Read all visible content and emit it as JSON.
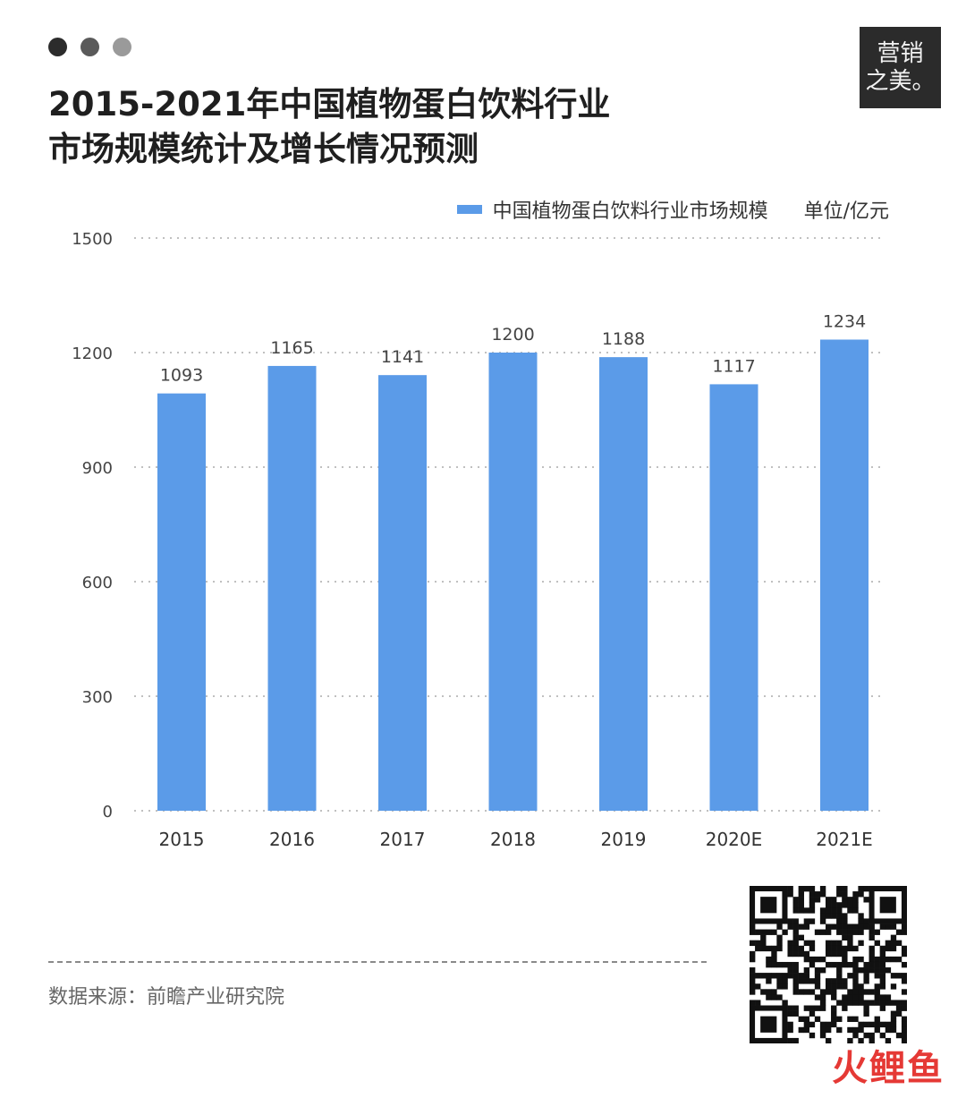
{
  "window_dots": [
    {
      "name": "dot-1",
      "color": "#2c2c2c"
    },
    {
      "name": "dot-2",
      "color": "#5a5a5a"
    },
    {
      "name": "dot-3",
      "color": "#9a9a9a"
    }
  ],
  "title_lines": [
    "2015-2021年中国植物蛋白饮料行业",
    "市场规模统计及增长情况预测"
  ],
  "logo": {
    "line1": "营销",
    "line2": "之美。"
  },
  "legend": {
    "label": "中国植物蛋白饮料行业市场规模",
    "unit": "单位/亿元",
    "color": "#5b9be8"
  },
  "chart_data": {
    "type": "bar",
    "categories": [
      "2015",
      "2016",
      "2017",
      "2018",
      "2019",
      "2020E",
      "2021E"
    ],
    "series": [
      {
        "name": "中国植物蛋白饮料行业市场规模",
        "values": [
          1093,
          1165,
          1141,
          1200,
          1188,
          1117,
          1234
        ],
        "color": "#5b9be8"
      }
    ],
    "title": "2015-2021年中国植物蛋白饮料行业市场规模统计及增长情况预测",
    "ylabel": "单位/亿元",
    "ylim": [
      0,
      1500
    ],
    "yticks": [
      0,
      300,
      600,
      900,
      1200,
      1500
    ],
    "grid": true,
    "legend_position": "top-right"
  },
  "source": "数据来源：前瞻产业研究院",
  "watermark": "火鲤鱼"
}
